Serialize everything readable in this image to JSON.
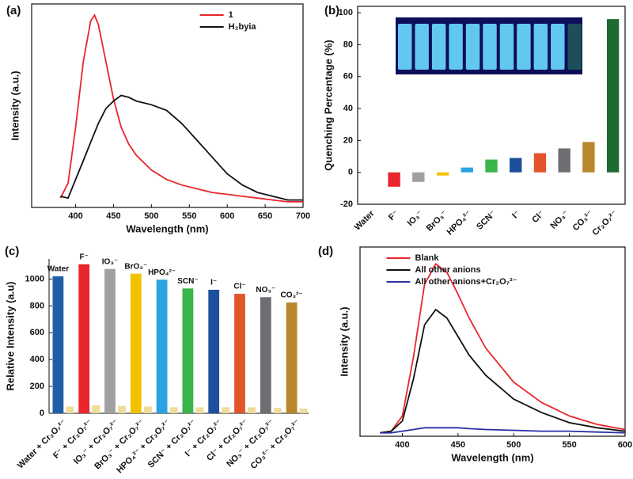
{
  "chart_data": [
    {
      "type": "line",
      "label": "(a)",
      "x_label": "Wavelength (nm)",
      "y_label": "Intensity (a.u.)",
      "xlim": [
        342,
        700
      ],
      "xticks": [
        400,
        450,
        500,
        550,
        600,
        650,
        700
      ],
      "ylim": [
        -3,
        106
      ],
      "legend": "upper right",
      "x": [
        380,
        390,
        400,
        410,
        420,
        425,
        430,
        440,
        450,
        460,
        470,
        480,
        500,
        520,
        540,
        560,
        580,
        600,
        620,
        640,
        660,
        680,
        700
      ],
      "series": [
        {
          "name": "1",
          "color": "#e8262b",
          "values": [
            2,
            10,
            40,
            75,
            97,
            100,
            95,
            75,
            55,
            40,
            31,
            25,
            17,
            12,
            9,
            7,
            5,
            4,
            3,
            2,
            1,
            0,
            0
          ]
        },
        {
          "name": "H₂byia",
          "color": "#111111",
          "values": [
            3,
            2,
            12,
            22,
            32,
            37,
            42,
            50,
            54,
            57,
            56,
            54,
            52,
            49,
            42,
            33,
            24,
            15,
            9,
            5,
            3,
            1,
            1
          ]
        }
      ]
    },
    {
      "type": "bar",
      "label": "(b)",
      "y_label": "Quenching Percentage (%)",
      "ylim": [
        -20,
        104
      ],
      "yticks": [
        -20,
        0,
        20,
        40,
        60,
        80,
        100
      ],
      "categories": [
        "Water",
        "F⁻",
        "IO₃⁻",
        "BrO₃⁻",
        "HPO₄²⁻",
        "SCN⁻",
        "I⁻",
        "Cl⁻",
        "NO₃⁻",
        "CO₃²⁻",
        "Cr₂O₇²⁻"
      ],
      "values": [
        0,
        -9,
        -6,
        -2,
        3,
        8,
        9,
        12,
        15,
        19,
        96
      ],
      "colors": [
        "#1f5fa8",
        "#e8262b",
        "#a0a0a0",
        "#f2c200",
        "#2ba3e0",
        "#39b54a",
        "#1d4f9c",
        "#e2552b",
        "#6d6e71",
        "#b8862b",
        "#1e6b32"
      ]
    },
    {
      "type": "bar",
      "label": "(c)",
      "y_label": "Relative Intensity (a.u)",
      "ylim": [
        0,
        1150
      ],
      "yticks": [
        0,
        200,
        400,
        600,
        800,
        1000
      ],
      "categories": [
        "Water + Cr₂O₇²⁻",
        "F⁻ + Cr₂O₇²⁻",
        "IO₃⁻ + Cr₂O₇²⁻",
        "BrO₃⁻ + Cr₂O₇²⁻",
        "HPO₄²⁻ + Cr₂O₇²⁻",
        "SCN⁻ + Cr₂O₇²⁻",
        "I⁻ + Cr₂O₇²⁻",
        "Cl⁻ + Cr₂O₇²⁻",
        "NO₃⁻ + Cr₂O₇²⁻",
        "CO₃²⁻ + Cr₂O₇²⁻"
      ],
      "bar_labels": [
        "Water",
        "F⁻",
        "IO₃⁻",
        "BrO₃⁻",
        "HPO₄²⁻",
        "SCN⁻",
        "I⁻",
        "Cl⁻",
        "NO₃⁻",
        "CO₃²⁻"
      ],
      "series": [
        {
          "colors": [
            "#1f5fa8",
            "#e8262b",
            "#a0a0a0",
            "#f2c200",
            "#2ba3e0",
            "#39b54a",
            "#1d4f9c",
            "#e2552b",
            "#6d6e71",
            "#b8862b"
          ],
          "values": [
            1020,
            1110,
            1075,
            1040,
            995,
            930,
            920,
            890,
            865,
            825
          ]
        },
        {
          "color": "#eedc9a",
          "values": [
            50,
            60,
            55,
            50,
            45,
            45,
            45,
            45,
            40,
            35
          ]
        }
      ]
    },
    {
      "type": "line",
      "label": "(d)",
      "x_label": "Wavelength (nm)",
      "y_label": "Intensity (a.u.)",
      "xlim": [
        362,
        600
      ],
      "xticks": [
        400,
        450,
        500,
        550,
        600
      ],
      "ylim": [
        -2,
        110
      ],
      "legend": "upper right",
      "x": [
        380,
        390,
        400,
        410,
        420,
        430,
        440,
        450,
        460,
        475,
        500,
        525,
        550,
        575,
        600
      ],
      "series": [
        {
          "name": "Blank",
          "color": "#e8262b",
          "values": [
            0,
            1,
            10,
            45,
            88,
            100,
            95,
            82,
            68,
            50,
            30,
            18,
            10,
            5,
            2
          ]
        },
        {
          "name": "All other anions",
          "color": "#111111",
          "values": [
            0,
            1,
            7,
            32,
            64,
            73,
            68,
            57,
            46,
            34,
            20,
            12,
            6,
            3,
            1
          ]
        },
        {
          "name": "All other anions+Cr₂O₇²⁻",
          "color": "#2b2fa8",
          "values": [
            0,
            0,
            1,
            2,
            3,
            3,
            3,
            3,
            2.5,
            2,
            1.5,
            1,
            1,
            0.5,
            0
          ]
        }
      ]
    }
  ]
}
